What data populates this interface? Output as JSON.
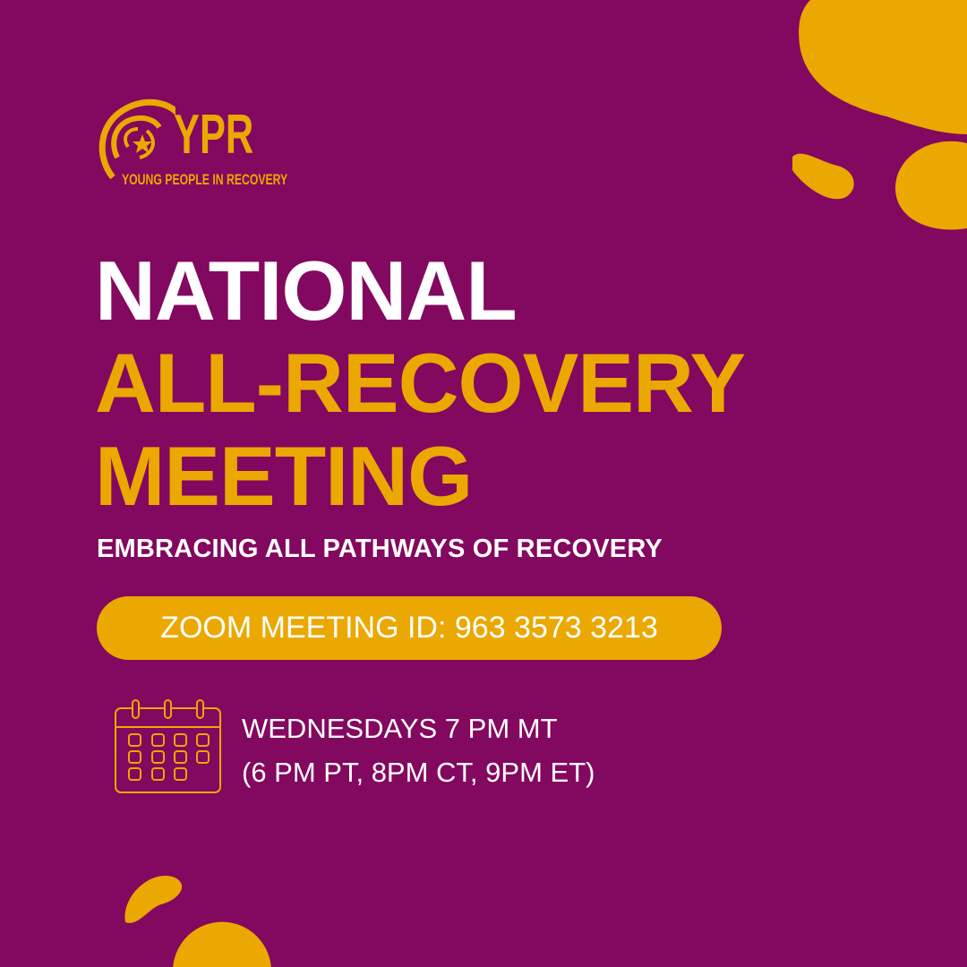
{
  "logo": {
    "wordmark": "YPR",
    "tagline": "YOUNG PEOPLE IN RECOVERY"
  },
  "headline": {
    "line1": "NATIONAL",
    "line2": "ALL-RECOVERY",
    "line3": "MEETING"
  },
  "subtitle": "EMBRACING ALL PATHWAYS OF RECOVERY",
  "meeting_id": "ZOOM MEETING ID: 963 3573 3213",
  "schedule": {
    "icon": "calendar-icon",
    "line1": "WEDNESDAYS 7 PM MT",
    "line2": "(6 PM PT, 8PM CT, 9PM ET)"
  },
  "colors": {
    "background": "#83085f",
    "accent": "#eaa800",
    "text": "#ffffff"
  }
}
